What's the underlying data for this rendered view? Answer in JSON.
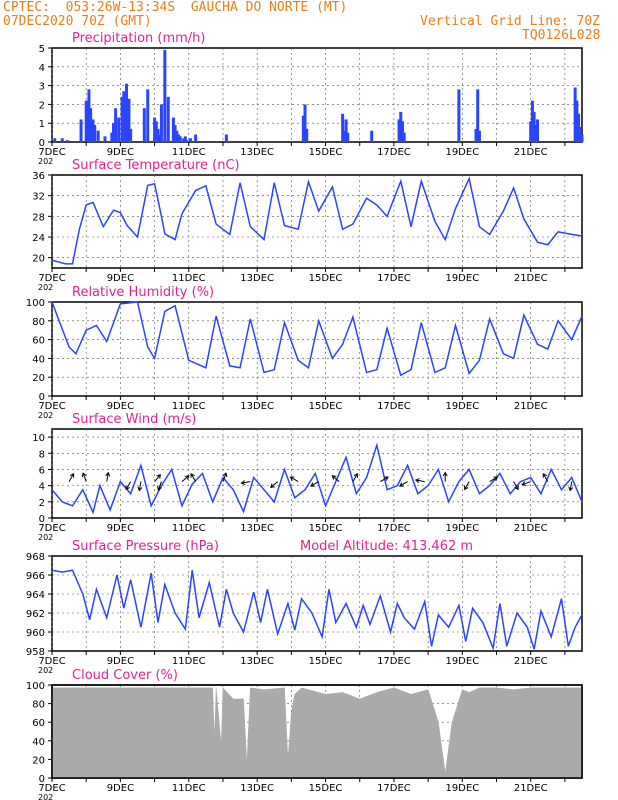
{
  "header": {
    "line1": "CPTEC:  053:26W-13:34S  GAUCHA DO NORTE (MT)",
    "line2_left": "07DEC2020 70Z (GMT)",
    "line2_right": "Vertical Grid Line: 70Z",
    "line3_right": "TQ0126L028",
    "color": "#e87f1c"
  },
  "title_color": "#e0229a",
  "line_color": "#2b44ff",
  "x_ticks": [
    "7DEC",
    "9DEC",
    "11DEC",
    "13DEC",
    "15DEC",
    "17DEC",
    "19DEC",
    "21DEC"
  ],
  "x_year_label": "202",
  "chart_data": [
    {
      "type": "bar",
      "title": "Precipitation (mm/h)",
      "ylim": [
        0,
        5
      ],
      "yticks": [
        "0",
        "1",
        "2",
        "3",
        "4",
        "5"
      ],
      "x_days": [
        0.08,
        0.3,
        0.45,
        0.85,
        1.0,
        1.08,
        1.13,
        1.2,
        1.25,
        1.35,
        1.55,
        1.75,
        1.8,
        1.86,
        1.95,
        2.05,
        2.1,
        2.18,
        2.25,
        2.3,
        2.7,
        2.8,
        3.0,
        3.05,
        3.1,
        3.15,
        3.2,
        3.3,
        3.4,
        3.55,
        3.6,
        3.65,
        3.7,
        3.75,
        3.85,
        3.9,
        3.95,
        4.05,
        4.2,
        5.1,
        7.35,
        7.4,
        7.45,
        8.5,
        8.55,
        8.6,
        8.65,
        9.35,
        10.15,
        10.2,
        10.25,
        10.3,
        11.9,
        12.4,
        12.45,
        12.5,
        14.0,
        14.05,
        14.1,
        14.15,
        14.2,
        15.3,
        15.35,
        15.4,
        15.45,
        15.5,
        16.7,
        16.8,
        17.35,
        17.4,
        17.45,
        17.5,
        17.6,
        17.7,
        17.8,
        17.85,
        17.9,
        17.95,
        17.98
      ],
      "values": [
        0.2,
        0.2,
        0.1,
        1.2,
        2.2,
        2.8,
        1.8,
        1.2,
        0.9,
        0.6,
        0.3,
        0.5,
        1.0,
        1.8,
        1.3,
        2.4,
        2.7,
        3.1,
        2.3,
        0.7,
        1.8,
        2.8,
        1.3,
        1.1,
        0.7,
        0.4,
        2.0,
        4.9,
        2.4,
        1.3,
        0.9,
        0.6,
        0.4,
        0.3,
        0.2,
        0.3,
        0.1,
        0.2,
        0.4,
        0.4,
        1.4,
        2.0,
        0.7,
        1.5,
        0.6,
        1.2,
        0.5,
        0.6,
        1.2,
        1.6,
        1.1,
        0.5,
        2.8,
        0.7,
        2.8,
        0.6,
        1.1,
        2.2,
        1.6,
        0.9,
        1.2,
        2.9,
        2.2,
        1.5,
        0.8,
        0.4,
        1.2,
        2.9,
        0.8,
        1.2,
        2.6,
        0.9,
        0.4,
        1.5,
        1.3,
        0.7,
        1.0,
        1.3,
        1.4
      ]
    },
    {
      "type": "line",
      "title": "Surface Temperature (nC)",
      "ylim": [
        18,
        36
      ],
      "yticks": [
        "20",
        "24",
        "28",
        "32",
        "36"
      ],
      "x_days": [
        0,
        0.4,
        0.6,
        0.8,
        1.0,
        1.2,
        1.5,
        1.8,
        2.0,
        2.2,
        2.5,
        2.8,
        3.0,
        3.2,
        3.3,
        3.6,
        3.8,
        4.2,
        4.5,
        4.8,
        5.2,
        5.5,
        5.8,
        6.2,
        6.5,
        6.8,
        7.2,
        7.5,
        7.8,
        8.2,
        8.5,
        8.8,
        9.2,
        9.5,
        9.8,
        10.2,
        10.5,
        10.8,
        11.2,
        11.5,
        11.8,
        12.2,
        12.5,
        12.8,
        13.2,
        13.5,
        13.8,
        14.2,
        14.5,
        14.8,
        15.2,
        15.5
      ],
      "values": [
        19.5,
        18.8,
        18.8,
        25.5,
        30.2,
        30.7,
        26.0,
        29.2,
        28.7,
        26.2,
        24.0,
        34.0,
        34.3,
        28.0,
        24.6,
        23.5,
        28.5,
        33.0,
        33.9,
        26.5,
        24.5,
        34.5,
        26.0,
        23.5,
        34.5,
        26.2,
        25.5,
        34.7,
        29.0,
        33.7,
        25.5,
        26.5,
        31.5,
        30.2,
        28.0,
        34.8,
        26.0,
        34.8,
        27.0,
        23.5,
        29.5,
        35.3,
        26.0,
        24.5,
        29.0,
        33.5,
        27.5,
        23.0,
        22.5,
        25.0,
        24.5,
        24.2
      ]
    },
    {
      "type": "line",
      "title": "Relative Humidity (%)",
      "ylim": [
        0,
        100
      ],
      "yticks": [
        "0",
        "20",
        "40",
        "60",
        "80",
        "100"
      ],
      "x_days": [
        0,
        0.5,
        0.7,
        1.0,
        1.3,
        1.6,
        2.0,
        2.5,
        2.8,
        3.0,
        3.3,
        3.6,
        4.0,
        4.5,
        4.8,
        5.2,
        5.5,
        5.8,
        6.2,
        6.5,
        6.8,
        7.2,
        7.5,
        7.8,
        8.2,
        8.5,
        8.8,
        9.2,
        9.5,
        9.8,
        10.2,
        10.5,
        10.8,
        11.2,
        11.5,
        11.8,
        12.2,
        12.5,
        12.8,
        13.2,
        13.5,
        13.8,
        14.2,
        14.5,
        14.8,
        15.2,
        15.5
      ],
      "values": [
        100,
        52,
        45,
        70,
        75,
        58,
        98,
        100,
        52,
        40,
        90,
        96,
        38,
        30,
        85,
        32,
        30,
        82,
        25,
        28,
        78,
        38,
        30,
        80,
        40,
        55,
        84,
        25,
        28,
        72,
        22,
        28,
        78,
        25,
        30,
        75,
        24,
        38,
        82,
        45,
        40,
        86,
        55,
        50,
        80,
        60,
        85
      ]
    },
    {
      "type": "line",
      "title": "Surface Wind (m/s)",
      "ylim": [
        0,
        11
      ],
      "yticks": [
        "0",
        "2",
        "4",
        "6",
        "8",
        "10"
      ],
      "x_days": [
        0,
        0.3,
        0.6,
        0.9,
        1.2,
        1.4,
        1.7,
        2.0,
        2.3,
        2.6,
        2.9,
        3.2,
        3.5,
        3.8,
        4.1,
        4.4,
        4.7,
        5.0,
        5.3,
        5.6,
        5.9,
        6.2,
        6.5,
        6.8,
        7.1,
        7.4,
        7.7,
        8.0,
        8.3,
        8.6,
        8.9,
        9.2,
        9.5,
        9.8,
        10.1,
        10.4,
        10.7,
        11.0,
        11.3,
        11.6,
        11.9,
        12.2,
        12.5,
        12.8,
        13.1,
        13.4,
        13.7,
        14.0,
        14.3,
        14.6,
        14.9,
        15.2,
        15.5
      ],
      "values": [
        3.5,
        2.0,
        1.5,
        3.5,
        0.7,
        4.0,
        1.0,
        4.5,
        3.0,
        6.5,
        1.5,
        4.0,
        6.0,
        1.5,
        4.2,
        5.5,
        2.0,
        5.0,
        3.5,
        0.8,
        5.0,
        3.5,
        2.0,
        6.0,
        2.5,
        3.5,
        5.5,
        1.5,
        4.5,
        7.5,
        3.0,
        5.0,
        9.0,
        3.5,
        4.0,
        6.5,
        3.0,
        4.0,
        6.0,
        2.0,
        4.5,
        6.0,
        3.0,
        4.0,
        5.5,
        3.0,
        4.5,
        5.0,
        3.0,
        6.0,
        3.5,
        5.0,
        2.0
      ],
      "arrows": [
        {
          "day": 0.5,
          "angle": -60
        },
        {
          "day": 1.0,
          "angle": -110
        },
        {
          "day": 1.6,
          "angle": -80
        },
        {
          "day": 2.3,
          "angle": 120
        },
        {
          "day": 2.6,
          "angle": 100
        },
        {
          "day": 3.0,
          "angle": -50
        },
        {
          "day": 3.2,
          "angle": 110
        },
        {
          "day": 3.8,
          "angle": -40
        },
        {
          "day": 4.2,
          "angle": -120
        },
        {
          "day": 5.0,
          "angle": -70
        },
        {
          "day": 5.8,
          "angle": 170
        },
        {
          "day": 6.6,
          "angle": 140
        },
        {
          "day": 7.2,
          "angle": -150
        },
        {
          "day": 7.8,
          "angle": 150
        },
        {
          "day": 8.4,
          "angle": -140
        },
        {
          "day": 8.8,
          "angle": -60
        },
        {
          "day": 9.6,
          "angle": -30
        },
        {
          "day": 10.4,
          "angle": 150
        },
        {
          "day": 10.9,
          "angle": -170
        },
        {
          "day": 11.5,
          "angle": -90
        },
        {
          "day": 12.2,
          "angle": 120
        },
        {
          "day": 12.8,
          "angle": -30
        },
        {
          "day": 13.5,
          "angle": 60
        },
        {
          "day": 14.0,
          "angle": 160
        },
        {
          "day": 14.5,
          "angle": -120
        },
        {
          "day": 15.2,
          "angle": 100
        }
      ]
    },
    {
      "type": "line",
      "title": "Surface Pressure (hPa)",
      "subtitle": "Model Altitude: 413.462 m",
      "ylim": [
        958,
        968
      ],
      "yticks": [
        "958",
        "960",
        "962",
        "964",
        "966",
        "968"
      ],
      "x_days": [
        0,
        0.3,
        0.6,
        0.9,
        1.1,
        1.3,
        1.6,
        1.9,
        2.1,
        2.3,
        2.6,
        2.9,
        3.1,
        3.3,
        3.6,
        3.9,
        4.1,
        4.3,
        4.6,
        4.9,
        5.1,
        5.3,
        5.6,
        5.9,
        6.1,
        6.3,
        6.6,
        6.9,
        7.1,
        7.3,
        7.6,
        7.9,
        8.1,
        8.3,
        8.6,
        8.9,
        9.1,
        9.3,
        9.6,
        9.9,
        10.1,
        10.3,
        10.6,
        10.9,
        11.1,
        11.3,
        11.6,
        11.9,
        12.1,
        12.3,
        12.6,
        12.9,
        13.1,
        13.3,
        13.6,
        13.9,
        14.1,
        14.3,
        14.6,
        14.9,
        15.1,
        15.3,
        15.5
      ],
      "values": [
        966.5,
        966.3,
        966.5,
        964.0,
        961.3,
        964.5,
        961.5,
        966.0,
        962.5,
        965.5,
        960.5,
        966.2,
        961.0,
        965.0,
        962.0,
        960.3,
        966.5,
        961.5,
        965.2,
        960.5,
        964.5,
        962.0,
        960.0,
        964.2,
        961.0,
        964.5,
        959.8,
        963.0,
        960.2,
        963.5,
        962.0,
        959.5,
        964.5,
        961.0,
        963.0,
        960.5,
        962.8,
        960.8,
        963.8,
        960.0,
        963.0,
        961.5,
        960.3,
        963.2,
        958.5,
        961.8,
        960.5,
        962.8,
        959.0,
        962.5,
        961.0,
        958.3,
        963.0,
        958.5,
        962.0,
        960.5,
        958.2,
        962.2,
        959.5,
        963.5,
        958.5,
        960.5,
        961.8
      ]
    },
    {
      "type": "area",
      "title": "Cloud Cover (%)",
      "ylim": [
        0,
        100
      ],
      "yticks": [
        "0",
        "20",
        "40",
        "60",
        "80",
        "100"
      ],
      "x_days": [
        0,
        4.7,
        4.75,
        4.8,
        4.95,
        5.0,
        5.3,
        5.6,
        5.7,
        5.8,
        6.2,
        6.8,
        6.9,
        7.0,
        7.1,
        7.3,
        7.5,
        8.0,
        8.5,
        9.0,
        9.5,
        10.0,
        10.5,
        11.0,
        11.3,
        11.5,
        11.7,
        12.0,
        12.2,
        12.5,
        13.0,
        13.5,
        14.0,
        14.5,
        15.0,
        15.5
      ],
      "values": [
        97,
        97,
        40,
        97,
        35,
        97,
        85,
        85,
        15,
        97,
        95,
        97,
        20,
        70,
        90,
        97,
        95,
        90,
        92,
        85,
        92,
        97,
        90,
        95,
        60,
        5,
        60,
        95,
        92,
        97,
        97,
        95,
        97,
        97,
        97,
        97
      ]
    }
  ]
}
